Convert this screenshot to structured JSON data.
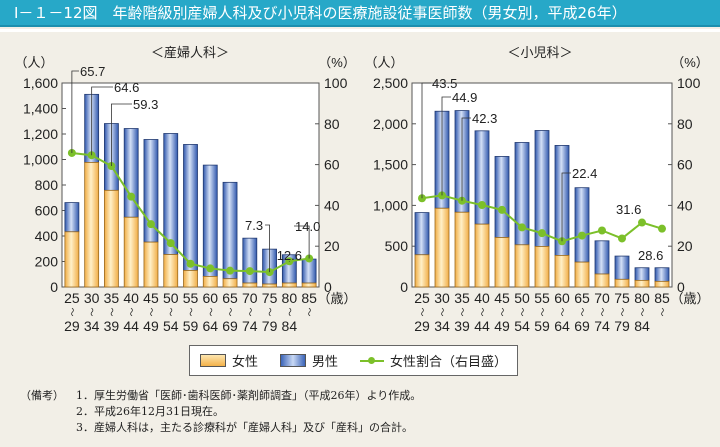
{
  "title": "Ⅰ－１－12図　年齢階級別産婦人科及び小児科の医療施設従事医師数（男女別，平成26年）",
  "legend": {
    "female": "女性",
    "male": "男性",
    "ratio": "女性割合（右目盛）"
  },
  "notes": {
    "label": "（備考）",
    "items": [
      "1．厚生労働省「医師･歯科医師･薬剤師調査」（平成26年）より作成。",
      "2．平成26年12月31日現在。",
      "3．産婦人科は，主たる診療科が「産婦人科」及び「産科」の合計。"
    ]
  },
  "colors": {
    "female": "#f4b24a",
    "male": "#3b64b8",
    "ratio": "#7cc02a",
    "title_bar": "#27a8c8"
  },
  "chart_data": [
    {
      "type": "bar",
      "stacked": true,
      "title": "＜産婦人科＞",
      "ylabel": "（人）",
      "y2label": "（%）",
      "xunit": "（歳）",
      "categories": [
        [
          "25",
          "29"
        ],
        [
          "30",
          "34"
        ],
        [
          "35",
          "39"
        ],
        [
          "40",
          "44"
        ],
        [
          "45",
          "49"
        ],
        [
          "50",
          "54"
        ],
        [
          "55",
          "59"
        ],
        [
          "60",
          "64"
        ],
        [
          "65",
          "69"
        ],
        [
          "70",
          "74"
        ],
        [
          "75",
          "79"
        ],
        [
          "80",
          "84"
        ],
        [
          "85",
          ""
        ]
      ],
      "range_mark": "～",
      "ylim": [
        0,
        1600
      ],
      "yticks": [
        "0",
        "200",
        "400",
        "600",
        "800",
        "1,000",
        "1,200",
        "1,400",
        "1,600"
      ],
      "y2lim": [
        0,
        100
      ],
      "y2ticks": [
        "0",
        "20",
        "40",
        "60",
        "80",
        "100"
      ],
      "series": [
        {
          "name": "女性",
          "values": [
            433,
            977,
            758,
            547,
            352,
            255,
            130,
            83,
            65,
            31,
            23,
            31,
            31
          ]
        },
        {
          "name": "男性",
          "values": [
            229,
            534,
            524,
            696,
            805,
            949,
            988,
            873,
            756,
            352,
            274,
            222,
            188
          ]
        },
        {
          "name": "女性割合（右目盛）",
          "axis": "right",
          "type": "line",
          "values": [
            65.7,
            64.6,
            59.3,
            44.3,
            30.8,
            21.5,
            11.4,
            9.1,
            8.0,
            7.8,
            7.3,
            12.6,
            14.0
          ]
        }
      ],
      "data_labels": [
        {
          "index": 0,
          "text": "65.7"
        },
        {
          "index": 1,
          "text": "64.6"
        },
        {
          "index": 2,
          "text": "59.3"
        },
        {
          "index": 10,
          "text": "7.3"
        },
        {
          "index": 11,
          "text": "12.6"
        },
        {
          "index": 12,
          "text": "14.0"
        }
      ]
    },
    {
      "type": "bar",
      "stacked": true,
      "title": "＜小児科＞",
      "ylabel": "（人）",
      "y2label": "（%）",
      "xunit": "（歳）",
      "categories": [
        [
          "25",
          "29"
        ],
        [
          "30",
          "34"
        ],
        [
          "35",
          "39"
        ],
        [
          "40",
          "44"
        ],
        [
          "45",
          "49"
        ],
        [
          "50",
          "54"
        ],
        [
          "55",
          "59"
        ],
        [
          "60",
          "64"
        ],
        [
          "65",
          "69"
        ],
        [
          "70",
          "74"
        ],
        [
          "75",
          "79"
        ],
        [
          "80",
          "84"
        ],
        [
          "85",
          ""
        ]
      ],
      "range_mark": "～",
      "ylim": [
        0,
        2500
      ],
      "yticks": [
        "0",
        "500",
        "1,000",
        "1,500",
        "2,000",
        "2,500"
      ],
      "y2lim": [
        0,
        100
      ],
      "y2ticks": [
        "0",
        "20",
        "40",
        "60",
        "80",
        "100"
      ],
      "series": [
        {
          "name": "女性",
          "values": [
            395,
            965,
            916,
            770,
            607,
            517,
            497,
            387,
            305,
            159,
            94,
            81,
            69
          ]
        },
        {
          "name": "男性",
          "values": [
            517,
            1189,
            1246,
            1144,
            993,
            1254,
            1421,
            1348,
            912,
            407,
            285,
            155,
            167
          ]
        },
        {
          "name": "女性割合（右目盛）",
          "axis": "right",
          "type": "line",
          "values": [
            43.5,
            44.9,
            42.3,
            40.2,
            37.8,
            29.2,
            26.4,
            22.4,
            25.2,
            27.7,
            23.8,
            31.6,
            28.6
          ]
        }
      ],
      "data_labels": [
        {
          "index": 0,
          "text": "43.5"
        },
        {
          "index": 1,
          "text": "44.9"
        },
        {
          "index": 2,
          "text": "42.3"
        },
        {
          "index": 7,
          "text": "22.4"
        },
        {
          "index": 11,
          "text": "31.6"
        },
        {
          "index": 12,
          "text": "28.6"
        }
      ]
    }
  ]
}
